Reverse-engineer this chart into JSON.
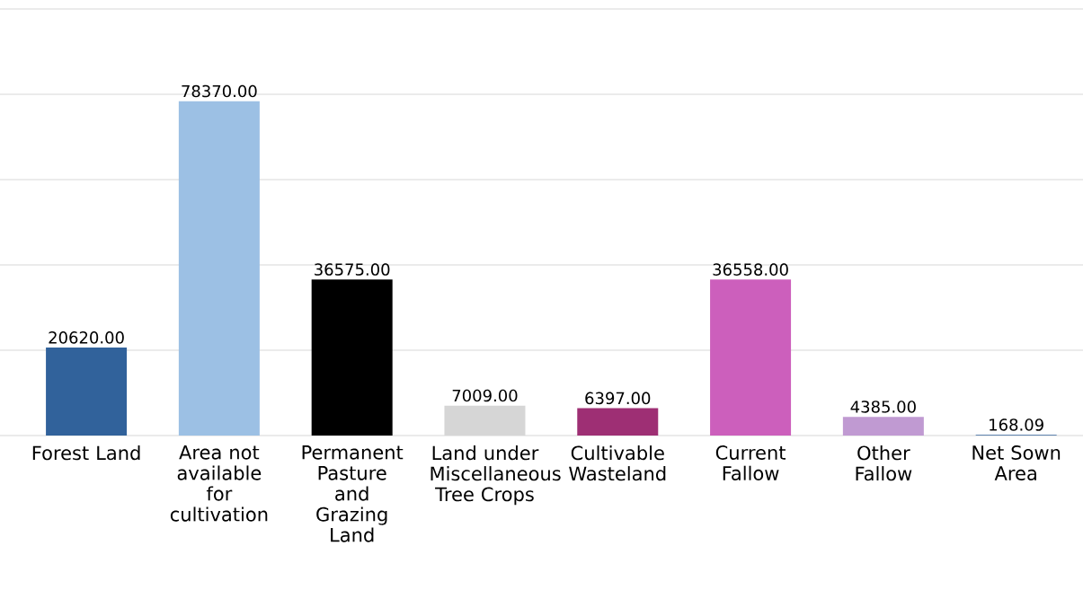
{
  "chart_data": {
    "type": "bar",
    "categories": [
      "Forest Land",
      "Area not available for cultivation",
      "Permanent Pasture and Grazing Land",
      "Land under Miscellaneous Tree Crops",
      "Cultivable Wasteland",
      "Current Fallow",
      "Other Fallow",
      "Net Sown Area"
    ],
    "values": [
      20620,
      78370,
      36575,
      7009,
      6397,
      36558,
      4385,
      168.09
    ],
    "value_labels": [
      "20620.00",
      "78370.00",
      "36575.00",
      "7009.00",
      "6397.00",
      "36558.00",
      "4385.00",
      "168.09"
    ],
    "colors": [
      "#31629b",
      "#9cc0e4",
      "#000000",
      "#d6d6d6",
      "#9e2f74",
      "#cc5fbc",
      "#c09ad2",
      "#31629b"
    ],
    "ylim": [
      0,
      100000
    ],
    "yticks": [
      {
        "value": 0,
        "label": null
      },
      {
        "value": 20000,
        "label": null
      },
      {
        "value": 40000,
        "label": null
      },
      {
        "value": 60000,
        "label": null
      },
      {
        "value": 80000,
        "label": null
      },
      {
        "value": 100000,
        "label": null
      }
    ],
    "tick_labels": "x",
    "grid": "y"
  }
}
